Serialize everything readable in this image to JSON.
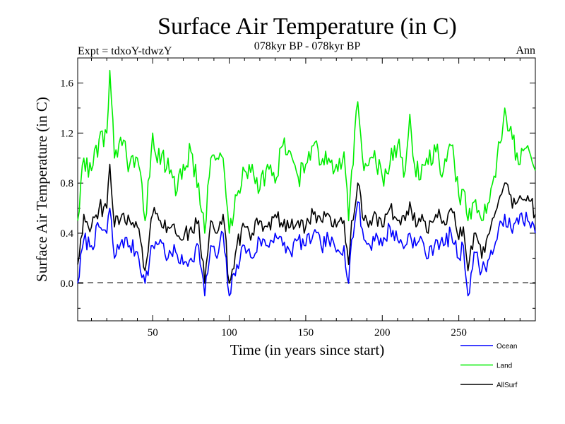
{
  "chart_data": {
    "type": "line",
    "title": "Surface Air Temperature (in C)",
    "subtitle": "078kyr BP - 078kyr BP",
    "expt_label": "Expt = tdxoY-tdwzY",
    "period_label": "Ann",
    "xlabel": "Time (in years since start)",
    "ylabel": "Surface Air Temperature (in C)",
    "xlim": [
      1,
      300
    ],
    "ylim": [
      -0.3,
      1.8
    ],
    "xticks": [
      50,
      100,
      150,
      200,
      250
    ],
    "yticks": [
      "0.0",
      "0.4",
      "0.8",
      "1.2",
      "1.6"
    ],
    "zero_line": "dashed",
    "grid": false,
    "legend_position": "bottom-right",
    "x_keys": [
      1,
      5,
      10,
      15,
      20,
      22,
      25,
      30,
      35,
      40,
      45,
      50,
      55,
      60,
      65,
      70,
      75,
      80,
      84,
      88,
      92,
      96,
      100,
      105,
      110,
      115,
      120,
      125,
      130,
      135,
      140,
      145,
      150,
      155,
      160,
      165,
      170,
      175,
      178,
      180,
      184,
      188,
      192,
      196,
      200,
      205,
      210,
      215,
      218,
      222,
      226,
      230,
      235,
      240,
      245,
      250,
      253,
      256,
      260,
      265,
      270,
      275,
      280,
      285,
      290,
      295,
      300
    ],
    "series": [
      {
        "name": "Ocean",
        "color": "#0000ff",
        "values": [
          0.0,
          0.35,
          0.3,
          0.45,
          0.4,
          0.6,
          0.2,
          0.35,
          0.3,
          0.25,
          0.0,
          0.3,
          0.35,
          0.2,
          0.25,
          0.15,
          0.2,
          0.3,
          -0.1,
          0.3,
          0.2,
          0.4,
          -0.1,
          0.15,
          0.3,
          0.2,
          0.35,
          0.3,
          0.4,
          0.3,
          0.25,
          0.35,
          0.3,
          0.4,
          0.3,
          0.35,
          0.25,
          0.3,
          0.0,
          0.35,
          0.65,
          0.35,
          0.3,
          0.4,
          0.3,
          0.45,
          0.35,
          0.3,
          0.4,
          0.3,
          0.35,
          0.2,
          0.35,
          0.3,
          0.4,
          0.2,
          0.3,
          -0.1,
          0.25,
          0.1,
          0.2,
          0.35,
          0.55,
          0.4,
          0.55,
          0.5,
          0.4
        ]
      },
      {
        "name": "Land",
        "color": "#00ee00",
        "values": [
          0.5,
          1.0,
          0.9,
          1.15,
          1.2,
          1.7,
          1.0,
          1.1,
          0.95,
          1.0,
          0.5,
          1.2,
          0.95,
          1.0,
          0.7,
          0.95,
          1.05,
          0.8,
          0.4,
          1.0,
          1.0,
          1.0,
          0.4,
          0.7,
          0.9,
          0.95,
          0.75,
          0.95,
          0.8,
          1.1,
          1.05,
          0.85,
          0.95,
          1.1,
          0.95,
          1.0,
          0.95,
          1.05,
          0.5,
          0.9,
          1.45,
          0.9,
          1.0,
          0.95,
          0.85,
          0.95,
          1.1,
          0.9,
          1.35,
          0.85,
          0.95,
          0.95,
          1.05,
          0.9,
          1.1,
          0.7,
          0.75,
          0.5,
          0.65,
          0.5,
          0.65,
          1.0,
          1.4,
          1.15,
          0.95,
          1.1,
          0.9
        ]
      },
      {
        "name": "AllSurf",
        "color": "#000000",
        "values": [
          0.15,
          0.55,
          0.45,
          0.6,
          0.6,
          0.95,
          0.45,
          0.55,
          0.5,
          0.45,
          0.1,
          0.55,
          0.5,
          0.45,
          0.4,
          0.35,
          0.45,
          0.5,
          0.0,
          0.5,
          0.4,
          0.55,
          0.0,
          0.3,
          0.45,
          0.4,
          0.5,
          0.45,
          0.55,
          0.45,
          0.45,
          0.5,
          0.45,
          0.55,
          0.5,
          0.55,
          0.45,
          0.5,
          0.15,
          0.5,
          0.8,
          0.5,
          0.5,
          0.55,
          0.45,
          0.6,
          0.5,
          0.5,
          0.65,
          0.45,
          0.55,
          0.4,
          0.55,
          0.5,
          0.6,
          0.35,
          0.45,
          0.1,
          0.4,
          0.2,
          0.4,
          0.6,
          0.8,
          0.6,
          0.7,
          0.7,
          0.55
        ]
      }
    ]
  }
}
